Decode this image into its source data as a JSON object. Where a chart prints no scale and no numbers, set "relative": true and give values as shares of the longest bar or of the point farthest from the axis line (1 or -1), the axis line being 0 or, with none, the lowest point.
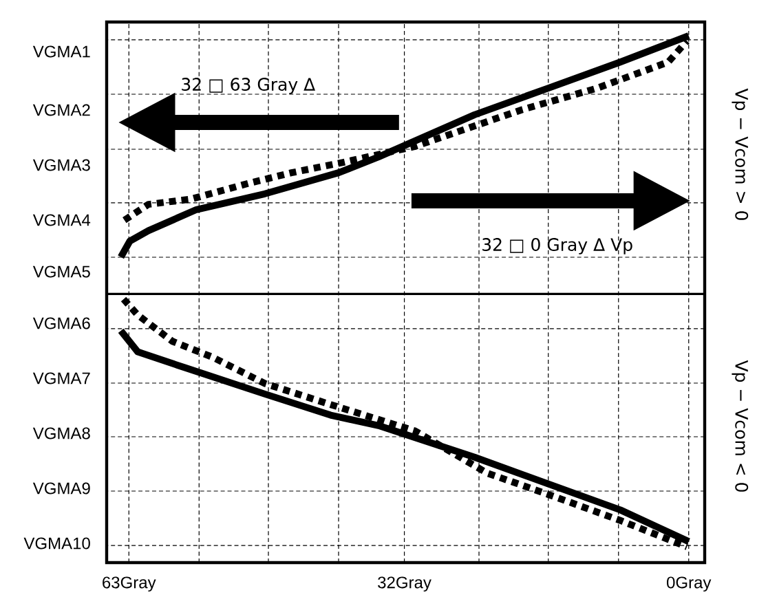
{
  "chart_data": {
    "type": "line",
    "relative": true,
    "xlim": [
      65.5,
      -1.8
    ],
    "xticks": [
      {
        "value": 63,
        "label": "63Gray"
      },
      {
        "value": 55.1,
        "label": null
      },
      {
        "value": 47.3,
        "label": null
      },
      {
        "value": 39.4,
        "label": null
      },
      {
        "value": 32,
        "label": "32Gray"
      },
      {
        "value": 23.6,
        "label": null
      },
      {
        "value": 15.8,
        "label": null
      },
      {
        "value": 7.9,
        "label": null
      },
      {
        "value": 0,
        "label": "0Gray"
      }
    ],
    "grid": true,
    "ref_lines": [
      {
        "axis": "y",
        "value": 0.51,
        "color": "#000000",
        "line_style": "solid"
      }
    ],
    "series": [
      {
        "color": "#000000",
        "line_style": "solid",
        "x": [
          63.9,
          62.9,
          60.8,
          55.4,
          47.7,
          39.4,
          34.9,
          24.1,
          15.9,
          7.7,
          0
        ],
        "values": [
          0.58,
          0.61,
          0.63,
          0.67,
          0.7,
          0.74,
          0.77,
          0.85,
          0.9,
          0.95,
          1
        ]
      },
      {
        "color": "#000000",
        "line_style": "dashed",
        "x": [
          63.5,
          60.8,
          56.0,
          49.5,
          44.7,
          38.8,
          30.8,
          18.7,
          10.4,
          2.3,
          0.2
        ],
        "values": [
          0.65,
          0.68,
          0.69,
          0.72,
          0.74,
          0.76,
          0.79,
          0.86,
          0.9,
          0.95,
          0.99
        ]
      },
      {
        "color": "#000000",
        "line_style": "solid",
        "x": [
          63.9,
          62.0,
          56.7,
          47.7,
          40.3,
          34.9,
          24.1,
          15.9,
          7.7,
          0
        ],
        "values": [
          0.44,
          0.4,
          0.37,
          0.32,
          0.28,
          0.26,
          0.2,
          0.15,
          0.1,
          0.04
        ]
      },
      {
        "color": "#000000",
        "line_style": "dashed",
        "x": [
          63.6,
          62.0,
          58.1,
          53.6,
          47.7,
          40.3,
          30.8,
          22.7,
          15.9,
          7.7,
          0.2
        ],
        "values": [
          0.5,
          0.47,
          0.42,
          0.39,
          0.34,
          0.3,
          0.25,
          0.17,
          0.13,
          0.08,
          0.03
        ]
      }
    ],
    "annotations": [
      "32 □  63 Gray Δ",
      "32 □  0 Gray Δ Vp",
      "Vp − Vcom > 0",
      "Vp − Vcom < 0",
      "VGMA1",
      "VGMA2",
      "VGMA3",
      "VGMA4",
      "VGMA5",
      "VGMA6",
      "VGMA7",
      "VGMA8",
      "VGMA9",
      "VGMA10"
    ]
  }
}
